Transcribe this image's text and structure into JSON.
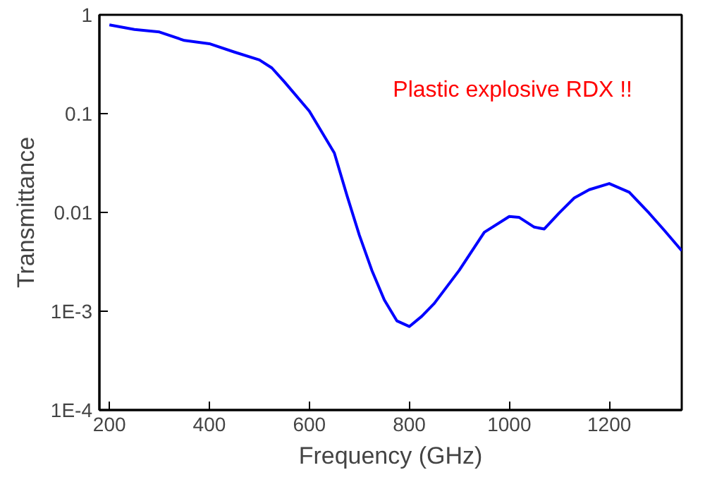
{
  "chart_data": {
    "type": "line",
    "xlabel": "Frequency (GHz)",
    "ylabel": "Transmittance",
    "annotations": [
      "Plastic explosive RDX !!"
    ],
    "log": "y",
    "grid": false,
    "marker": "none",
    "line_style": "solid",
    "xlim": [
      180,
      1345
    ],
    "ylim": [
      0.0001,
      1
    ],
    "xticks": [
      200,
      400,
      600,
      800,
      1000,
      1200
    ],
    "yticks": [
      {
        "value": 0.0001,
        "label": "1E-4"
      },
      {
        "value": 0.001,
        "label": "1E-3"
      },
      0.01,
      0.1,
      1
    ],
    "x": [
      200,
      250,
      300,
      350,
      400,
      450,
      500,
      525,
      550,
      600,
      650,
      675,
      700,
      725,
      750,
      775,
      800,
      825,
      850,
      900,
      950,
      1000,
      1020,
      1050,
      1070,
      1100,
      1130,
      1160,
      1200,
      1240,
      1280,
      1310,
      1345
    ],
    "series": [
      {
        "color": "#0000ff",
        "values": [
          0.79,
          0.71,
          0.67,
          0.55,
          0.51,
          0.42,
          0.35,
          0.29,
          0.21,
          0.106,
          0.04,
          0.015,
          0.0059,
          0.0026,
          0.0013,
          0.0008,
          0.0007,
          0.00089,
          0.0012,
          0.0026,
          0.0063,
          0.0091,
          0.0089,
          0.0071,
          0.0068,
          0.0099,
          0.014,
          0.017,
          0.0196,
          0.016,
          0.0098,
          0.0066,
          0.0041
        ]
      }
    ]
  }
}
